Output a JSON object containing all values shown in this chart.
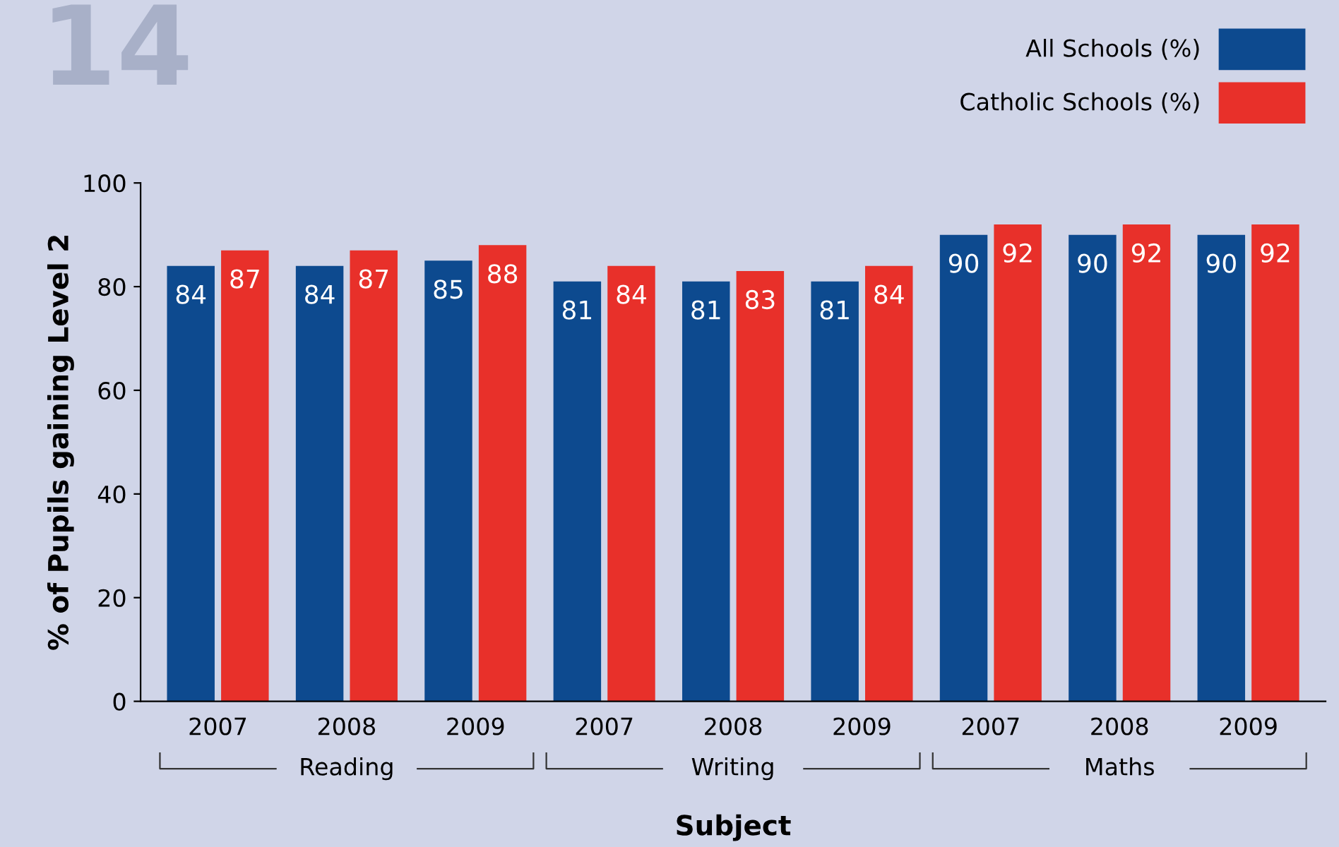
{
  "chart_data": {
    "type": "bar",
    "xlabel": "Subject",
    "ylabel": "% of Pupils gaining Level 2",
    "categories": [
      "2007",
      "2008",
      "2009",
      "2007",
      "2008",
      "2009",
      "2007",
      "2008",
      "2009"
    ],
    "series": [
      {
        "name": "All Schools (%)",
        "color": "#0d4a8f",
        "values": [
          84,
          84,
          85,
          81,
          81,
          81,
          90,
          90,
          90
        ]
      },
      {
        "name": "Catholic Schools (%)",
        "color": "#e8302a",
        "values": [
          87,
          87,
          88,
          84,
          83,
          84,
          92,
          92,
          92
        ]
      }
    ],
    "ylim": [
      0,
      100
    ],
    "yticks": [
      0,
      20,
      40,
      60,
      80,
      100
    ],
    "grid": false,
    "legend": "top right",
    "data_labels": true,
    "annotations": [
      "14",
      "Reading",
      "Writing",
      "Maths"
    ]
  }
}
